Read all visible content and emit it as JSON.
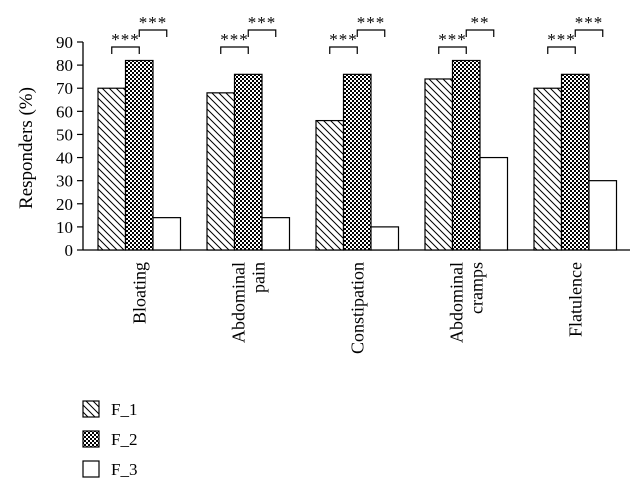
{
  "chart_data": {
    "type": "bar",
    "title": "",
    "xlabel": "",
    "ylabel": "Responders (%)",
    "ylim": [
      0,
      90
    ],
    "yticks": [
      0,
      10,
      20,
      30,
      40,
      50,
      60,
      70,
      80,
      90
    ],
    "grid": false,
    "legend_position": "bottom-left",
    "categories": [
      [
        "Bloating"
      ],
      [
        "Abdominal",
        "pain"
      ],
      [
        "Constipation"
      ],
      [
        "Abdominal",
        "cramps"
      ],
      [
        "Flatulence"
      ]
    ],
    "series": [
      {
        "name": "F_1",
        "pattern": "diagonal-hatch",
        "values": [
          70,
          68,
          56,
          74,
          70
        ]
      },
      {
        "name": "F_2",
        "pattern": "dots",
        "values": [
          82,
          76,
          76,
          82,
          76
        ]
      },
      {
        "name": "F_3",
        "pattern": "blank",
        "values": [
          14,
          14,
          10,
          40,
          30
        ]
      }
    ],
    "significance": [
      {
        "category": 0,
        "pairs": [
          {
            "from": "F_1",
            "to": "F_2",
            "label": "***"
          },
          {
            "from": "F_2",
            "to": "F_3",
            "label": "***"
          }
        ]
      },
      {
        "category": 1,
        "pairs": [
          {
            "from": "F_1",
            "to": "F_2",
            "label": "***"
          },
          {
            "from": "F_2",
            "to": "F_3",
            "label": "***"
          }
        ]
      },
      {
        "category": 2,
        "pairs": [
          {
            "from": "F_1",
            "to": "F_2",
            "label": "***"
          },
          {
            "from": "F_2",
            "to": "F_3",
            "label": "***"
          }
        ]
      },
      {
        "category": 3,
        "pairs": [
          {
            "from": "F_1",
            "to": "F_2",
            "label": "***"
          },
          {
            "from": "F_2",
            "to": "F_3",
            "label": "**"
          }
        ]
      },
      {
        "category": 4,
        "pairs": [
          {
            "from": "F_1",
            "to": "F_2",
            "label": "***"
          },
          {
            "from": "F_2",
            "to": "F_3",
            "label": "***"
          }
        ]
      }
    ],
    "colors": {
      "bar_stroke": "#000000",
      "bar_fill": "#ffffff"
    }
  }
}
